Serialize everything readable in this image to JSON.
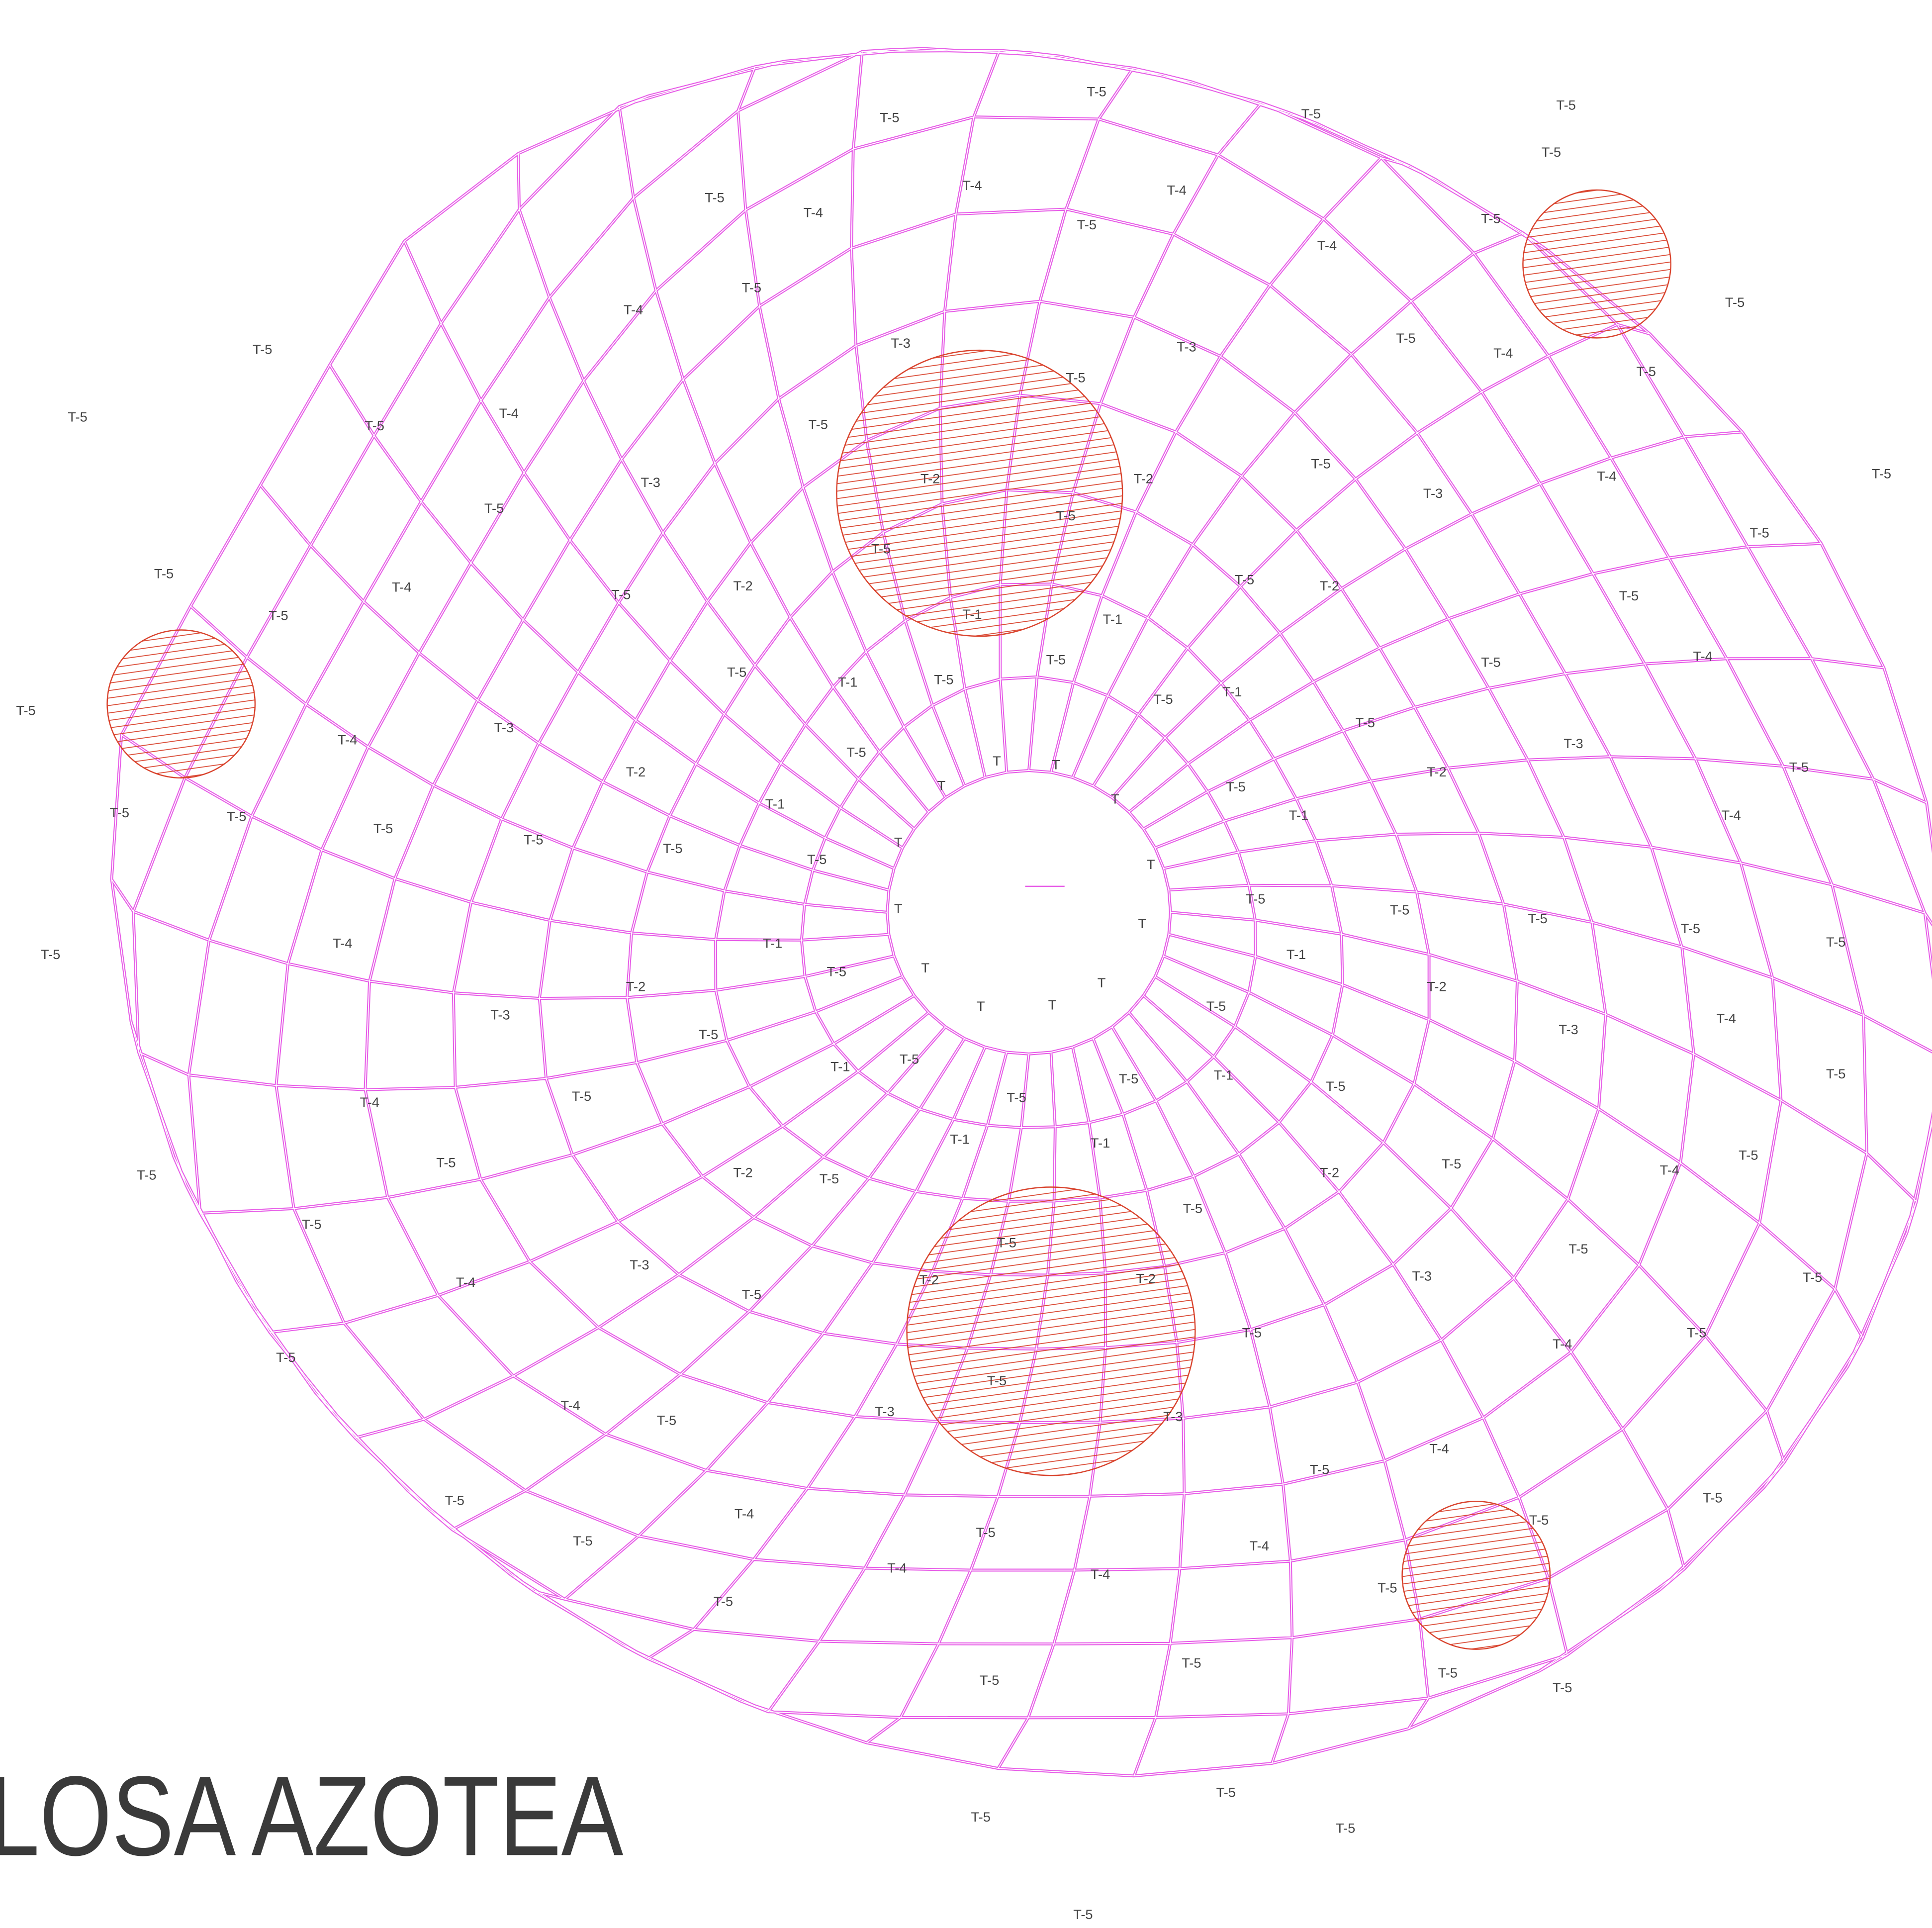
{
  "title": "LOSA AZOTEA",
  "labels": [
    "T-5",
    "T-5",
    "T-5",
    "T-5",
    "T-5",
    "T-4",
    "T-4",
    "T-4",
    "T-5",
    "T-5",
    "T-5",
    "T-4",
    "T-5",
    "T-4",
    "T-3",
    "T-3",
    "T-5",
    "T-4",
    "T-5",
    "T-5",
    "T-5",
    "T-5",
    "T-5",
    "T-4",
    "T-5",
    "T-5",
    "T-3",
    "T-2",
    "T-2",
    "T-5",
    "T-3",
    "T-4",
    "T-5",
    "T-5",
    "T-5",
    "T-5",
    "T-5",
    "T-5",
    "T-5",
    "T-4",
    "T-5",
    "T-2",
    "T-1",
    "T-1",
    "T-5",
    "T-2",
    "T-5",
    "T-5",
    "T-1",
    "T-5",
    "T-5",
    "T-5",
    "T-1",
    "T-5",
    "T-4",
    "T-5",
    "T-4",
    "T-3",
    "T-5",
    "T-5",
    "T-3",
    "T-2",
    "T-1",
    "T-5",
    "T-2",
    "T-5",
    "T-5",
    "T-5",
    "T-5",
    "T-5",
    "T-5",
    "T-5",
    "T-1",
    "T-4",
    "T",
    "T",
    "T",
    "T",
    "T",
    "T",
    "T",
    "T",
    "T",
    "T",
    "T",
    "T",
    "T-5",
    "T-5",
    "T-5",
    "T-5",
    "T-5",
    "T-5",
    "T-4",
    "T-1",
    "T-5",
    "T-1",
    "T-2",
    "T-3",
    "T-2",
    "T-3",
    "T-4",
    "T-5",
    "T-5",
    "T-5",
    "T-1",
    "T-5",
    "T-5",
    "T-5",
    "T-1",
    "T-5",
    "T-4",
    "T-5",
    "T-1",
    "T-1",
    "T-5",
    "T-5",
    "T-5",
    "T-2",
    "T-5",
    "T-5",
    "T-4",
    "T-2",
    "T-5",
    "T-5",
    "T-5",
    "T-3",
    "T-4",
    "T-2",
    "T-2",
    "T-5",
    "T-3",
    "T-5",
    "T-5",
    "T-5",
    "T-5",
    "T-5",
    "T-5",
    "T-4",
    "T-4",
    "T-3",
    "T-3",
    "T-5",
    "T-4",
    "T-5",
    "T-5",
    "T-5",
    "T-5",
    "T-4",
    "T-5",
    "T-5",
    "T-4",
    "T-4",
    "T-4",
    "T-5",
    "T-5",
    "T-5",
    "T-5",
    "T-5",
    "T-5",
    "T-5",
    "T-5",
    "T-5",
    "T-5"
  ]
}
